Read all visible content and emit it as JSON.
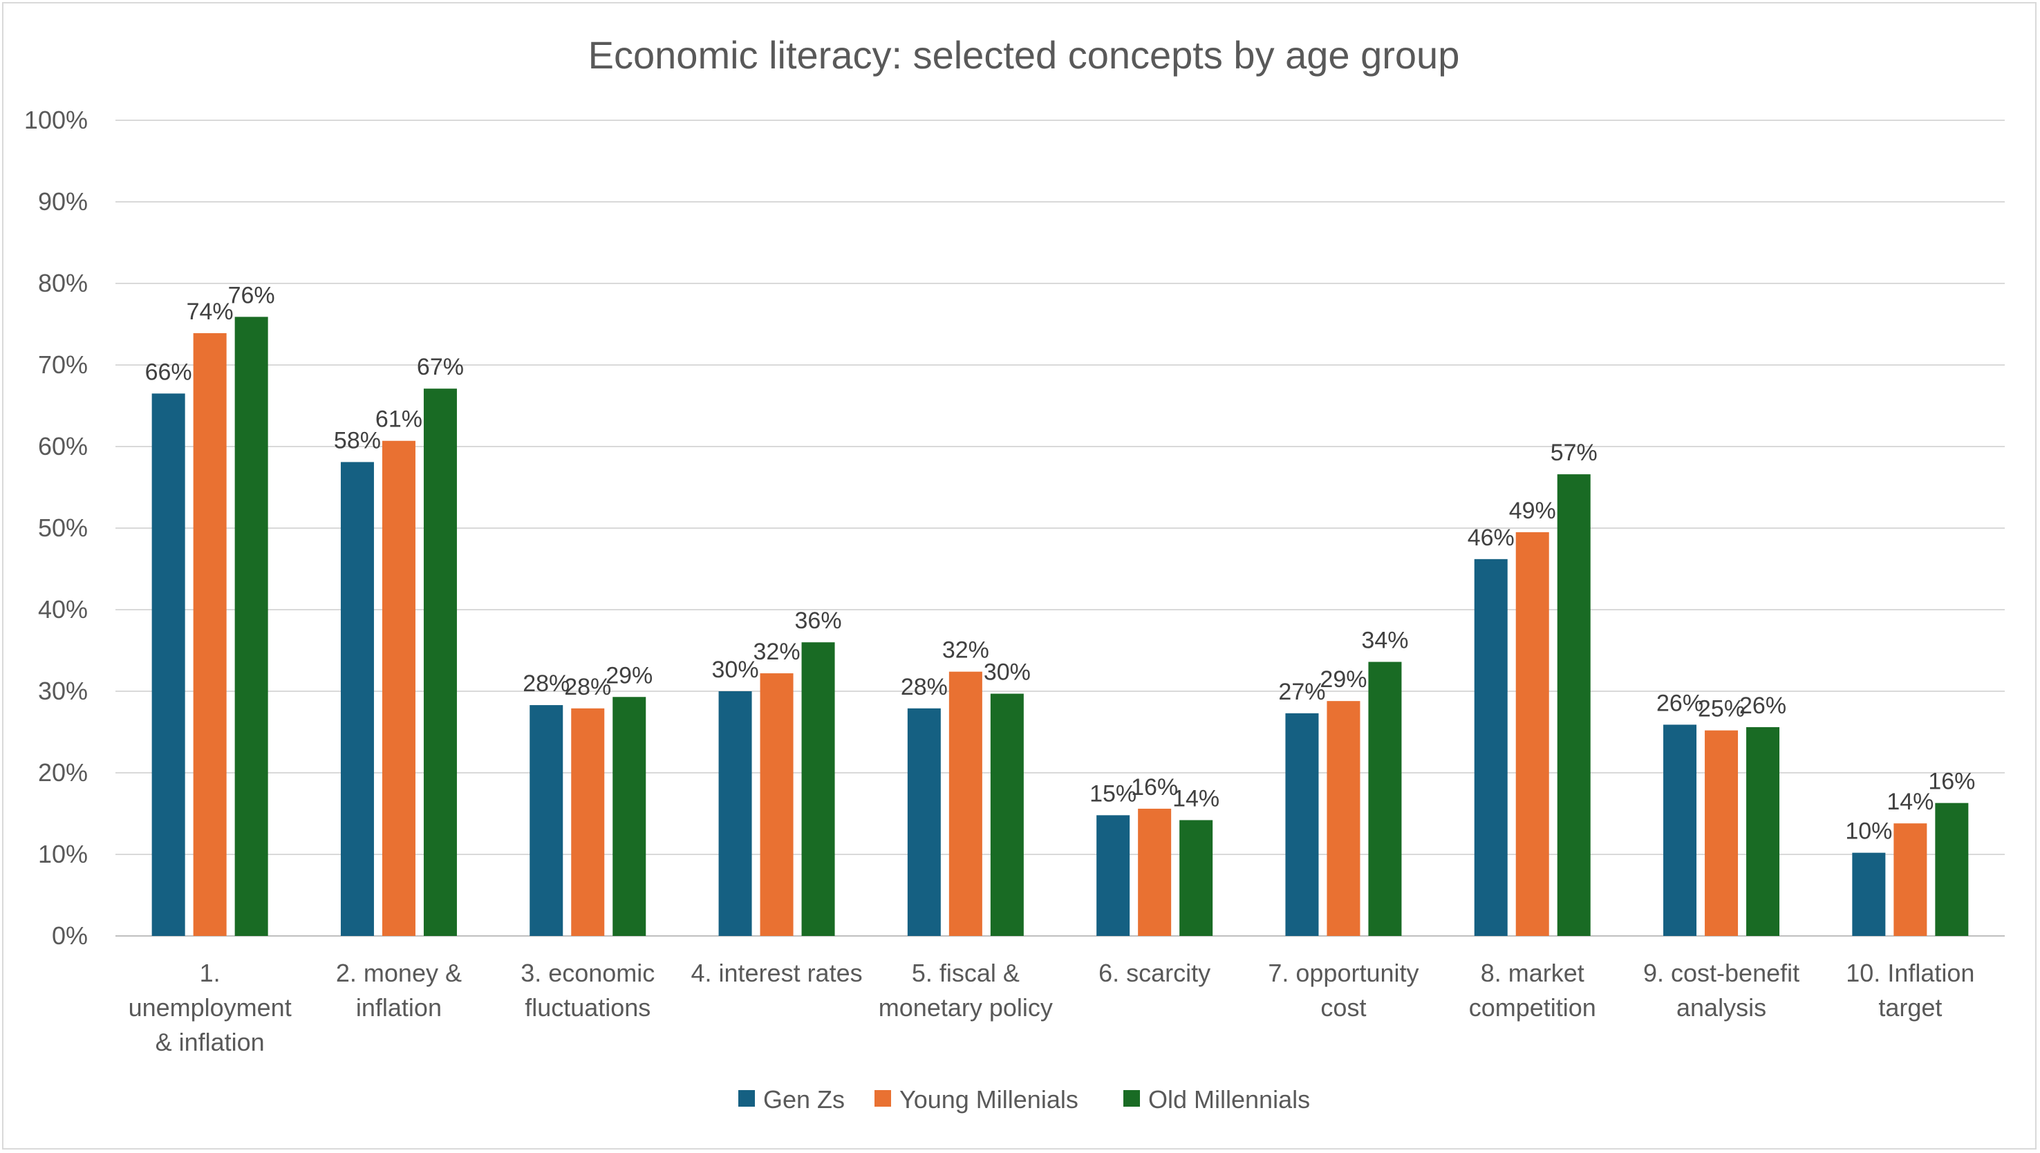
{
  "chart_data": {
    "type": "bar",
    "title": "Economic literacy: selected concepts by age group",
    "xlabel": "",
    "ylabel": "",
    "ylim": [
      0,
      100
    ],
    "yticks": [
      "0%",
      "10%",
      "20%",
      "30%",
      "40%",
      "50%",
      "60%",
      "70%",
      "80%",
      "90%",
      "100%"
    ],
    "categories": [
      [
        "1.",
        "unemployment",
        "& inflation"
      ],
      [
        "2. money &",
        "inflation"
      ],
      [
        "3. economic",
        "fluctuations"
      ],
      [
        "4. interest rates"
      ],
      [
        "5.  fiscal &",
        "monetary policy"
      ],
      [
        "6. scarcity"
      ],
      [
        "7. opportunity",
        "cost"
      ],
      [
        "8. market",
        "competition"
      ],
      [
        "9. cost-benefit",
        "analysis"
      ],
      [
        "10. Inflation",
        "target"
      ]
    ],
    "series": [
      {
        "name": "Gen Zs",
        "color": "#156082",
        "values": [
          66.5,
          58.1,
          28.3,
          30.0,
          27.9,
          14.8,
          27.3,
          46.2,
          25.9,
          10.2
        ],
        "labels": [
          "66%",
          "58%",
          "28%",
          "30%",
          "28%",
          "15%",
          "27%",
          "46%",
          "26%",
          "10%"
        ]
      },
      {
        "name": "Young Millenials",
        "color": "#E97132",
        "values": [
          73.9,
          60.7,
          27.9,
          32.2,
          32.4,
          15.6,
          28.8,
          49.5,
          25.2,
          13.8
        ],
        "labels": [
          "74%",
          "61%",
          "28%",
          "32%",
          "32%",
          "16%",
          "29%",
          "49%",
          "25%",
          "14%"
        ]
      },
      {
        "name": "Old Millennials",
        "color": "#196B24",
        "values": [
          75.9,
          67.1,
          29.3,
          36.0,
          29.7,
          14.2,
          33.6,
          56.6,
          25.6,
          16.3
        ],
        "labels": [
          "76%",
          "67%",
          "29%",
          "36%",
          "30%",
          "14%",
          "34%",
          "57%",
          "26%",
          "16%"
        ]
      }
    ],
    "grid": true,
    "legend_position": "bottom"
  }
}
